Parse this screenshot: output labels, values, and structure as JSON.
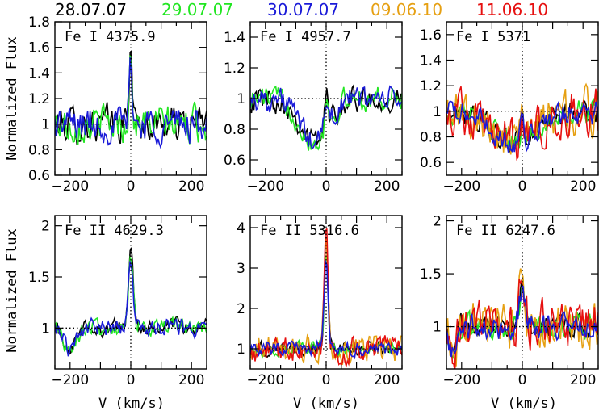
{
  "legend": [
    {
      "label": "28.07.07",
      "color": "#000000"
    },
    {
      "label": "29.07.07",
      "color": "#22e622"
    },
    {
      "label": "30.07.07",
      "color": "#1a1ad8"
    },
    {
      "label": "09.06.10",
      "color": "#e6a012"
    },
    {
      "label": "11.06.10",
      "color": "#e60f0f"
    }
  ],
  "ylabel": "Normalized Flux",
  "xlabel": "V (km/s)",
  "chart_data": [
    {
      "type": "line",
      "title": "Fe I 4375.9",
      "xlim": [
        -250,
        250
      ],
      "ylim": [
        0.6,
        1.8
      ],
      "yticks": [
        0.6,
        0.8,
        1,
        1.2,
        1.4,
        1.6,
        1.8
      ],
      "xticks": [
        -200,
        0,
        200
      ],
      "series": [
        "28.07.07",
        "29.07.07",
        "30.07.07"
      ],
      "reference_level": 1,
      "profile": {
        "peak": 0.55,
        "peak_width": 5,
        "dip_depth": 0.0,
        "dip_center": 0,
        "dip_width": 30,
        "noise": 0.12
      }
    },
    {
      "type": "line",
      "title": "Fe I 4957.7",
      "xlim": [
        -250,
        250
      ],
      "ylim": [
        0.5,
        1.5
      ],
      "yticks": [
        0.6,
        0.8,
        1,
        1.2,
        1.4
      ],
      "xticks": [
        -200,
        0,
        200
      ],
      "series": [
        "28.07.07",
        "29.07.07",
        "30.07.07"
      ],
      "reference_level": 1,
      "profile": {
        "peak": 0.2,
        "peak_width": 5,
        "dip_depth": 0.28,
        "dip_center": -40,
        "dip_width": 45,
        "noise": 0.07
      }
    },
    {
      "type": "line",
      "title": "Fe I 5371",
      "xlim": [
        -250,
        250
      ],
      "ylim": [
        0.5,
        1.7
      ],
      "yticks": [
        0.6,
        0.8,
        1,
        1.2,
        1.4,
        1.6
      ],
      "xticks": [
        -200,
        0,
        200
      ],
      "series": [
        "28.07.07",
        "29.07.07",
        "30.07.07",
        "09.06.10",
        "11.06.10"
      ],
      "reference_level": 1,
      "profile": {
        "peak": 0.15,
        "peak_width": 5,
        "dip_depth": 0.25,
        "dip_center": -30,
        "dip_width": 70,
        "noise": 0.08
      }
    },
    {
      "type": "line",
      "title": "Fe II 4629.3",
      "xlim": [
        -250,
        250
      ],
      "ylim": [
        0.6,
        2.1
      ],
      "yticks": [
        1,
        1.5,
        2
      ],
      "xticks": [
        -200,
        0,
        200
      ],
      "series": [
        "28.07.07",
        "29.07.07",
        "30.07.07"
      ],
      "reference_level": 1,
      "profile": {
        "peak": 0.75,
        "peak_width": 7,
        "dip_depth": 0.2,
        "dip_center": -200,
        "dip_width": 20,
        "noise": 0.07
      }
    },
    {
      "type": "line",
      "title": "Fe II 5316.6",
      "xlim": [
        -250,
        250
      ],
      "ylim": [
        0.5,
        4.3
      ],
      "yticks": [
        1,
        2,
        3,
        4
      ],
      "xticks": [
        -200,
        0,
        200
      ],
      "series": [
        "28.07.07",
        "29.07.07",
        "30.07.07",
        "09.06.10",
        "11.06.10"
      ],
      "reference_level": 1,
      "profile": {
        "peak": 2.4,
        "peak_width": 6,
        "dip_depth": 0.0,
        "dip_center": -200,
        "dip_width": 20,
        "noise": 0.15
      }
    },
    {
      "type": "line",
      "title": "Fe II 6247.6",
      "xlim": [
        -250,
        250
      ],
      "ylim": [
        0.6,
        2.05
      ],
      "yticks": [
        1,
        1.5,
        2
      ],
      "xticks": [
        -200,
        0,
        200
      ],
      "series": [
        "28.07.07",
        "29.07.07",
        "30.07.07",
        "09.06.10",
        "11.06.10"
      ],
      "reference_level": 1,
      "profile": {
        "peak": 0.4,
        "peak_width": 10,
        "dip_depth": 0.25,
        "dip_center": -230,
        "dip_width": 12,
        "noise": 0.1
      }
    }
  ]
}
